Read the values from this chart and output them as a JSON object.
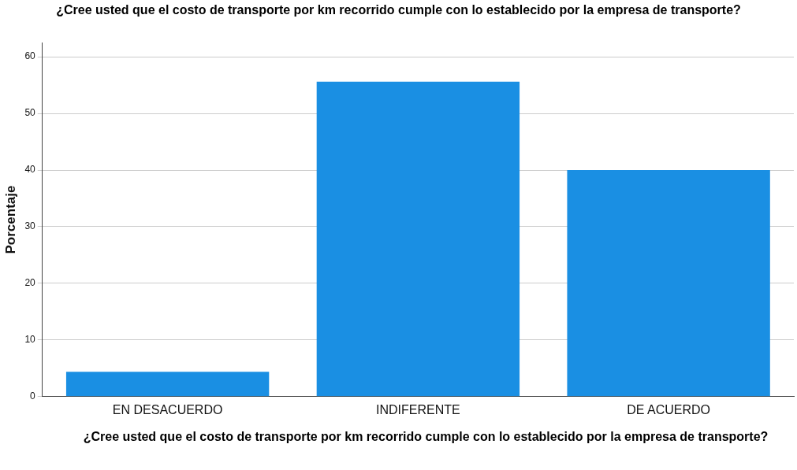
{
  "chart_data": {
    "type": "bar",
    "title": "¿Cree usted que el costo de transporte por km recorrido cumple con lo establecido por la empresa de transporte?",
    "xlabel": "¿Cree usted que el costo de transporte por km recorrido cumple con lo establecido por la empresa de transporte?",
    "ylabel": "Porcentaje",
    "categories": [
      "EN DESACUERDO",
      "INDIFERENTE",
      "DE ACUERDO"
    ],
    "values": [
      4.4,
      55.6,
      40.0
    ],
    "color": "#1a8fe3",
    "ylim": [
      0,
      62.5
    ],
    "yticks": [
      0,
      10,
      20,
      30,
      40,
      50,
      60
    ],
    "grid": "y",
    "legend": false
  }
}
